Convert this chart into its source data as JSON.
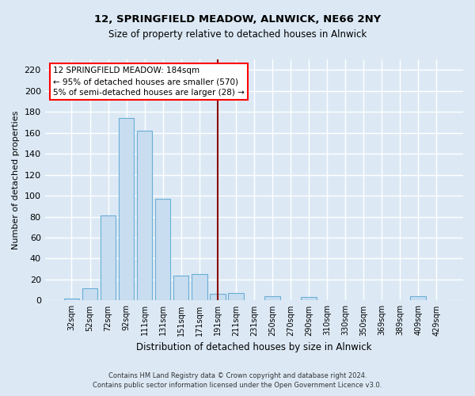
{
  "title": "12, SPRINGFIELD MEADOW, ALNWICK, NE66 2NY",
  "subtitle": "Size of property relative to detached houses in Alnwick",
  "xlabel": "Distribution of detached houses by size in Alnwick",
  "ylabel": "Number of detached properties",
  "bar_labels": [
    "32sqm",
    "52sqm",
    "72sqm",
    "92sqm",
    "111sqm",
    "131sqm",
    "151sqm",
    "171sqm",
    "191sqm",
    "211sqm",
    "231sqm",
    "250sqm",
    "270sqm",
    "290sqm",
    "310sqm",
    "330sqm",
    "350sqm",
    "369sqm",
    "389sqm",
    "409sqm",
    "429sqm"
  ],
  "bar_values": [
    2,
    12,
    81,
    174,
    162,
    97,
    24,
    25,
    6,
    7,
    0,
    4,
    0,
    3,
    0,
    0,
    0,
    0,
    0,
    4,
    0
  ],
  "bar_color": "#c8ddf0",
  "bar_edge_color": "#6aaed6",
  "vline_index": 8,
  "vline_color": "#8b0000",
  "ylim": [
    0,
    230
  ],
  "yticks": [
    0,
    20,
    40,
    60,
    80,
    100,
    120,
    140,
    160,
    180,
    200,
    220
  ],
  "annotation_title": "12 SPRINGFIELD MEADOW: 184sqm",
  "annotation_line1": "← 95% of detached houses are smaller (570)",
  "annotation_line2": "5% of semi-detached houses are larger (28) →",
  "footer_line1": "Contains HM Land Registry data © Crown copyright and database right 2024.",
  "footer_line2": "Contains public sector information licensed under the Open Government Licence v3.0.",
  "background_color": "#dce9f5",
  "grid_color": "#ffffff"
}
